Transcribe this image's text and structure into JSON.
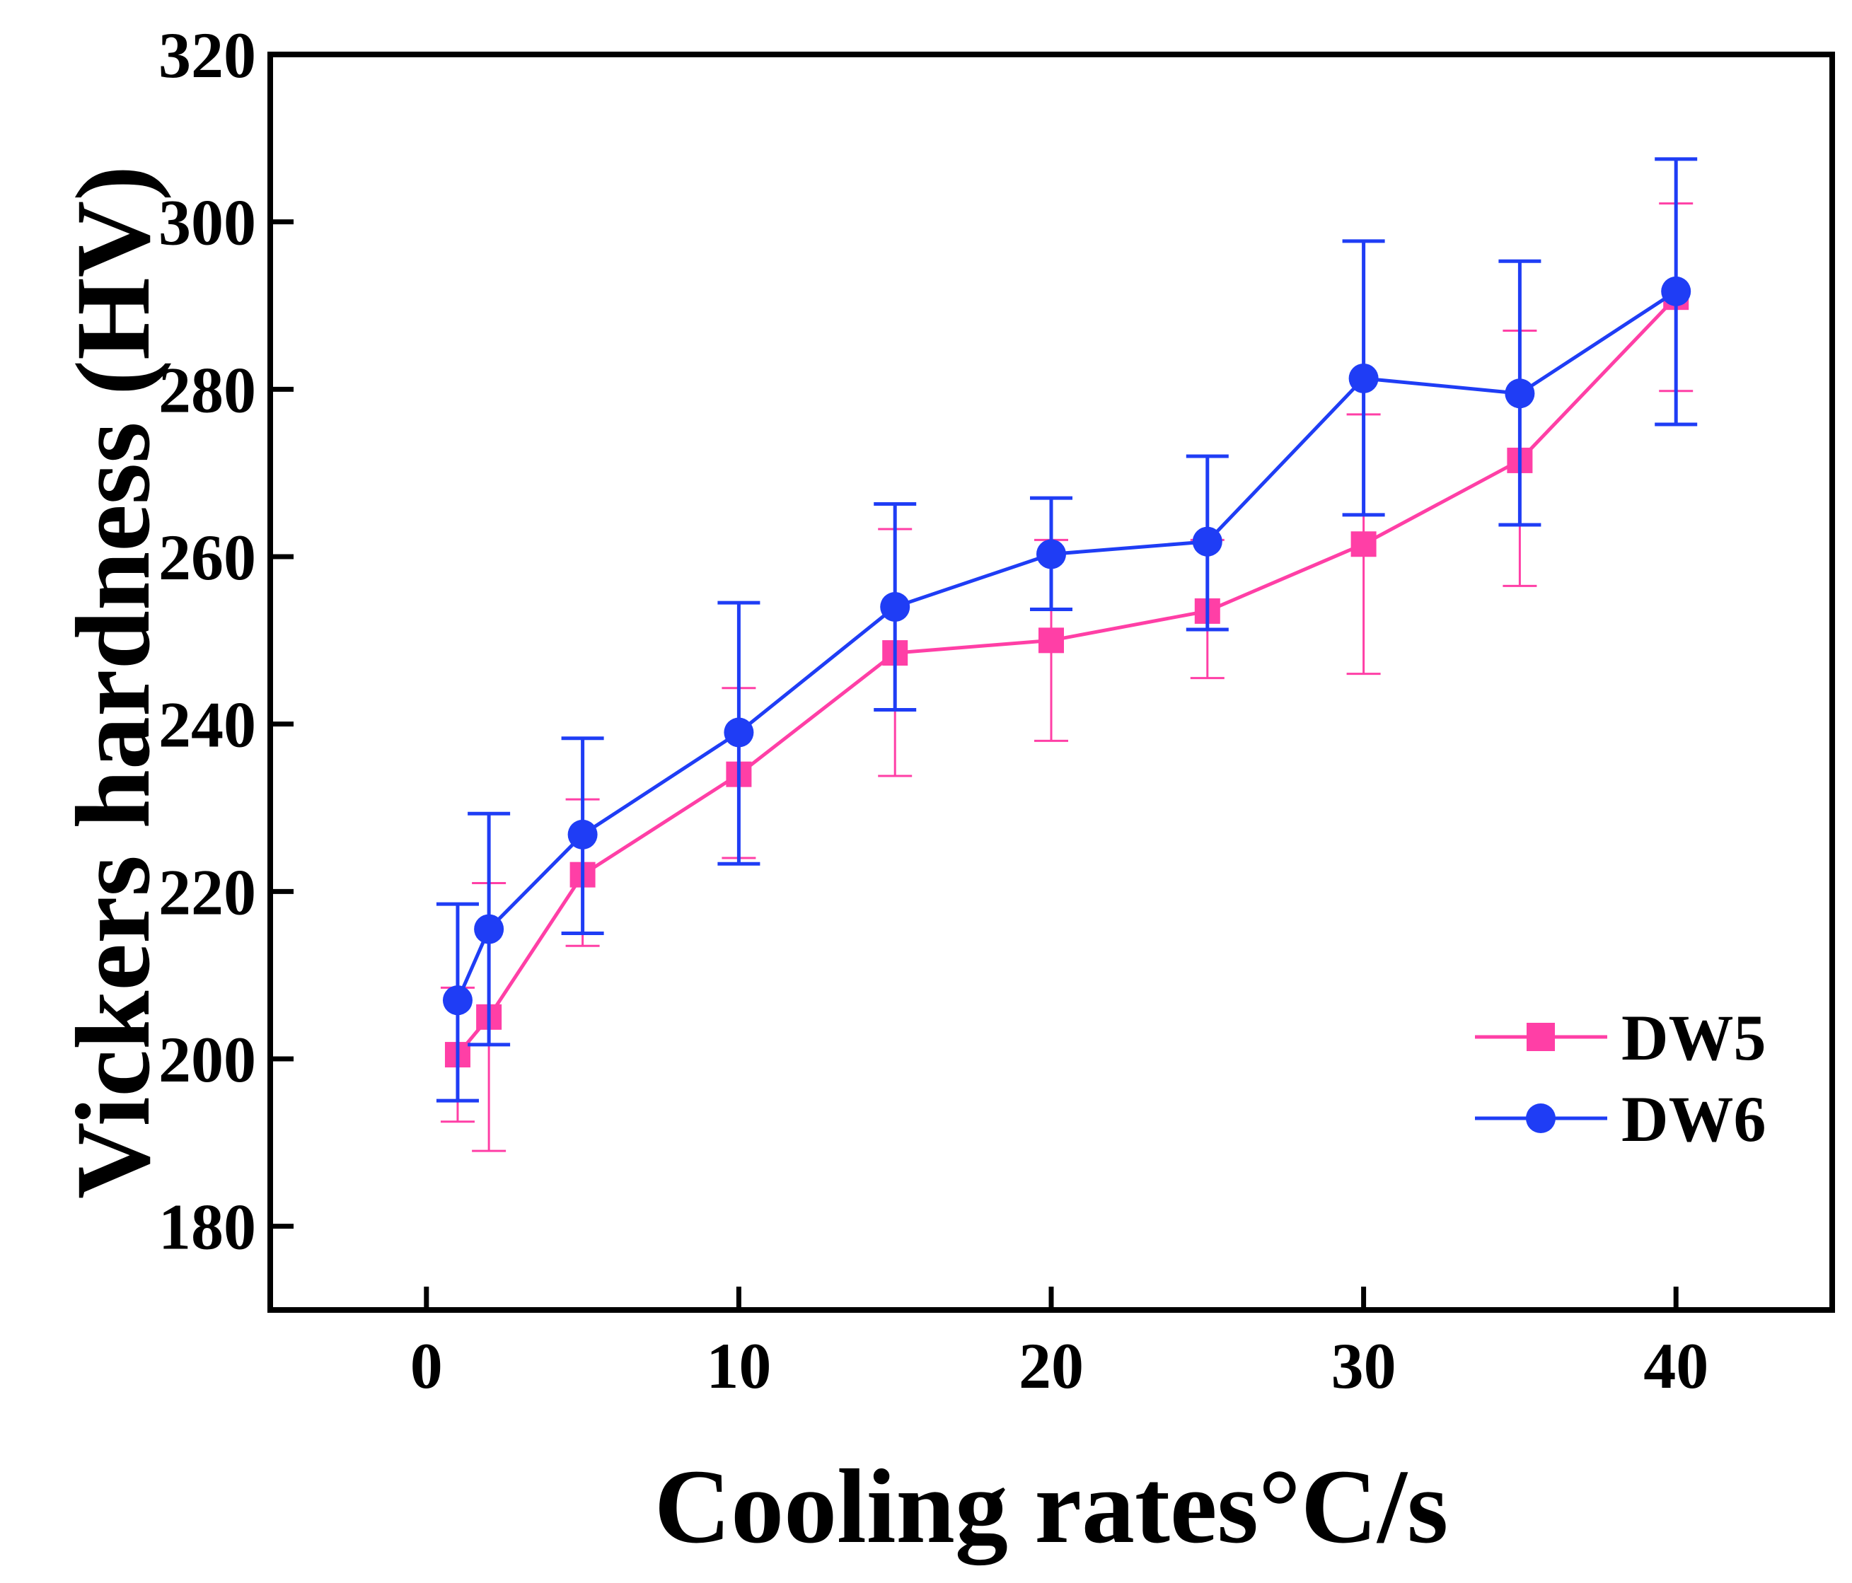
{
  "chart_data": {
    "type": "line",
    "title": "",
    "xlabel": "Cooling rates°C/s",
    "ylabel": "Vickers hardness (HV)",
    "xlim": [
      -5,
      45
    ],
    "ylim": [
      170,
      320
    ],
    "xticks": [
      0,
      10,
      20,
      30,
      40
    ],
    "yticks": [
      180,
      200,
      220,
      240,
      260,
      280,
      300,
      320
    ],
    "xtick_labels": [
      "0",
      "10",
      "20",
      "30",
      "40"
    ],
    "ytick_labels": [
      "180",
      "200",
      "220",
      "240",
      "260",
      "280",
      "300",
      "320"
    ],
    "grid": false,
    "legend_position": "lower-right",
    "series": [
      {
        "name": "DW5",
        "color": "#ff3fa6",
        "marker": "square",
        "x": [
          1,
          2,
          5,
          10,
          15,
          20,
          25,
          30,
          35,
          40
        ],
        "y": [
          200.5,
          205,
          222,
          234,
          248.5,
          250,
          253.5,
          261.5,
          271.5,
          291
        ],
        "err_low": [
          192.5,
          189,
          213.5,
          224,
          233.8,
          238,
          245.5,
          246,
          256.5,
          279.8
        ],
        "err_high": [
          208.5,
          221,
          231,
          244.3,
          263.3,
          262,
          262,
          277,
          287,
          302.2
        ]
      },
      {
        "name": "DW6",
        "color": "#1f3df5",
        "marker": "circle",
        "x": [
          1,
          2,
          5,
          10,
          15,
          20,
          25,
          30,
          35,
          40
        ],
        "y": [
          207,
          215.5,
          226.8,
          239,
          254,
          260.3,
          261.8,
          281.3,
          279.5,
          291.7
        ],
        "err_low": [
          195,
          201.7,
          215,
          223.3,
          241.7,
          253.7,
          251.3,
          265,
          263.8,
          275.8
        ],
        "err_high": [
          218.5,
          229.3,
          238.3,
          254.5,
          266.3,
          267,
          272,
          297.7,
          295.3,
          307.5
        ]
      }
    ]
  }
}
